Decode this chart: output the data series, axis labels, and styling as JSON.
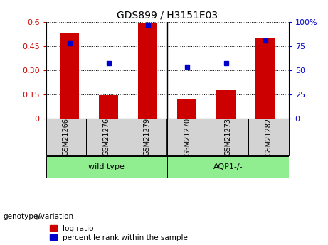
{
  "title": "GDS899 / H3151E03",
  "samples": [
    "GSM21266",
    "GSM21276",
    "GSM21279",
    "GSM21270",
    "GSM21273",
    "GSM21282"
  ],
  "log_ratios": [
    0.535,
    0.145,
    0.595,
    0.12,
    0.175,
    0.5
  ],
  "percentile_ranks": [
    78,
    57,
    97,
    54,
    57,
    81
  ],
  "bar_color": "#CC0000",
  "dot_color": "#0000CC",
  "ylim_left": [
    0,
    0.6
  ],
  "ylim_right": [
    0,
    100
  ],
  "yticks_left": [
    0,
    0.15,
    0.3,
    0.45,
    0.6
  ],
  "ytick_labels_left": [
    "0",
    "0.15",
    "0.30",
    "0.45",
    "0.6"
  ],
  "yticks_right": [
    0,
    25,
    50,
    75,
    100
  ],
  "ytick_labels_right": [
    "0",
    "25",
    "50",
    "75",
    "100%"
  ],
  "group_labels": [
    "wild type",
    "AQP1-/-"
  ],
  "group_color": "#90EE90",
  "sample_box_color": "#D3D3D3",
  "genotype_label": "genotype/variation",
  "legend_label_ratio": "log ratio",
  "legend_label_percentile": "percentile rank within the sample",
  "bar_color_legend": "#CC0000",
  "dot_color_legend": "#0000CC",
  "bar_width": 0.5,
  "figsize": [
    4.61,
    3.45
  ],
  "dpi": 100
}
